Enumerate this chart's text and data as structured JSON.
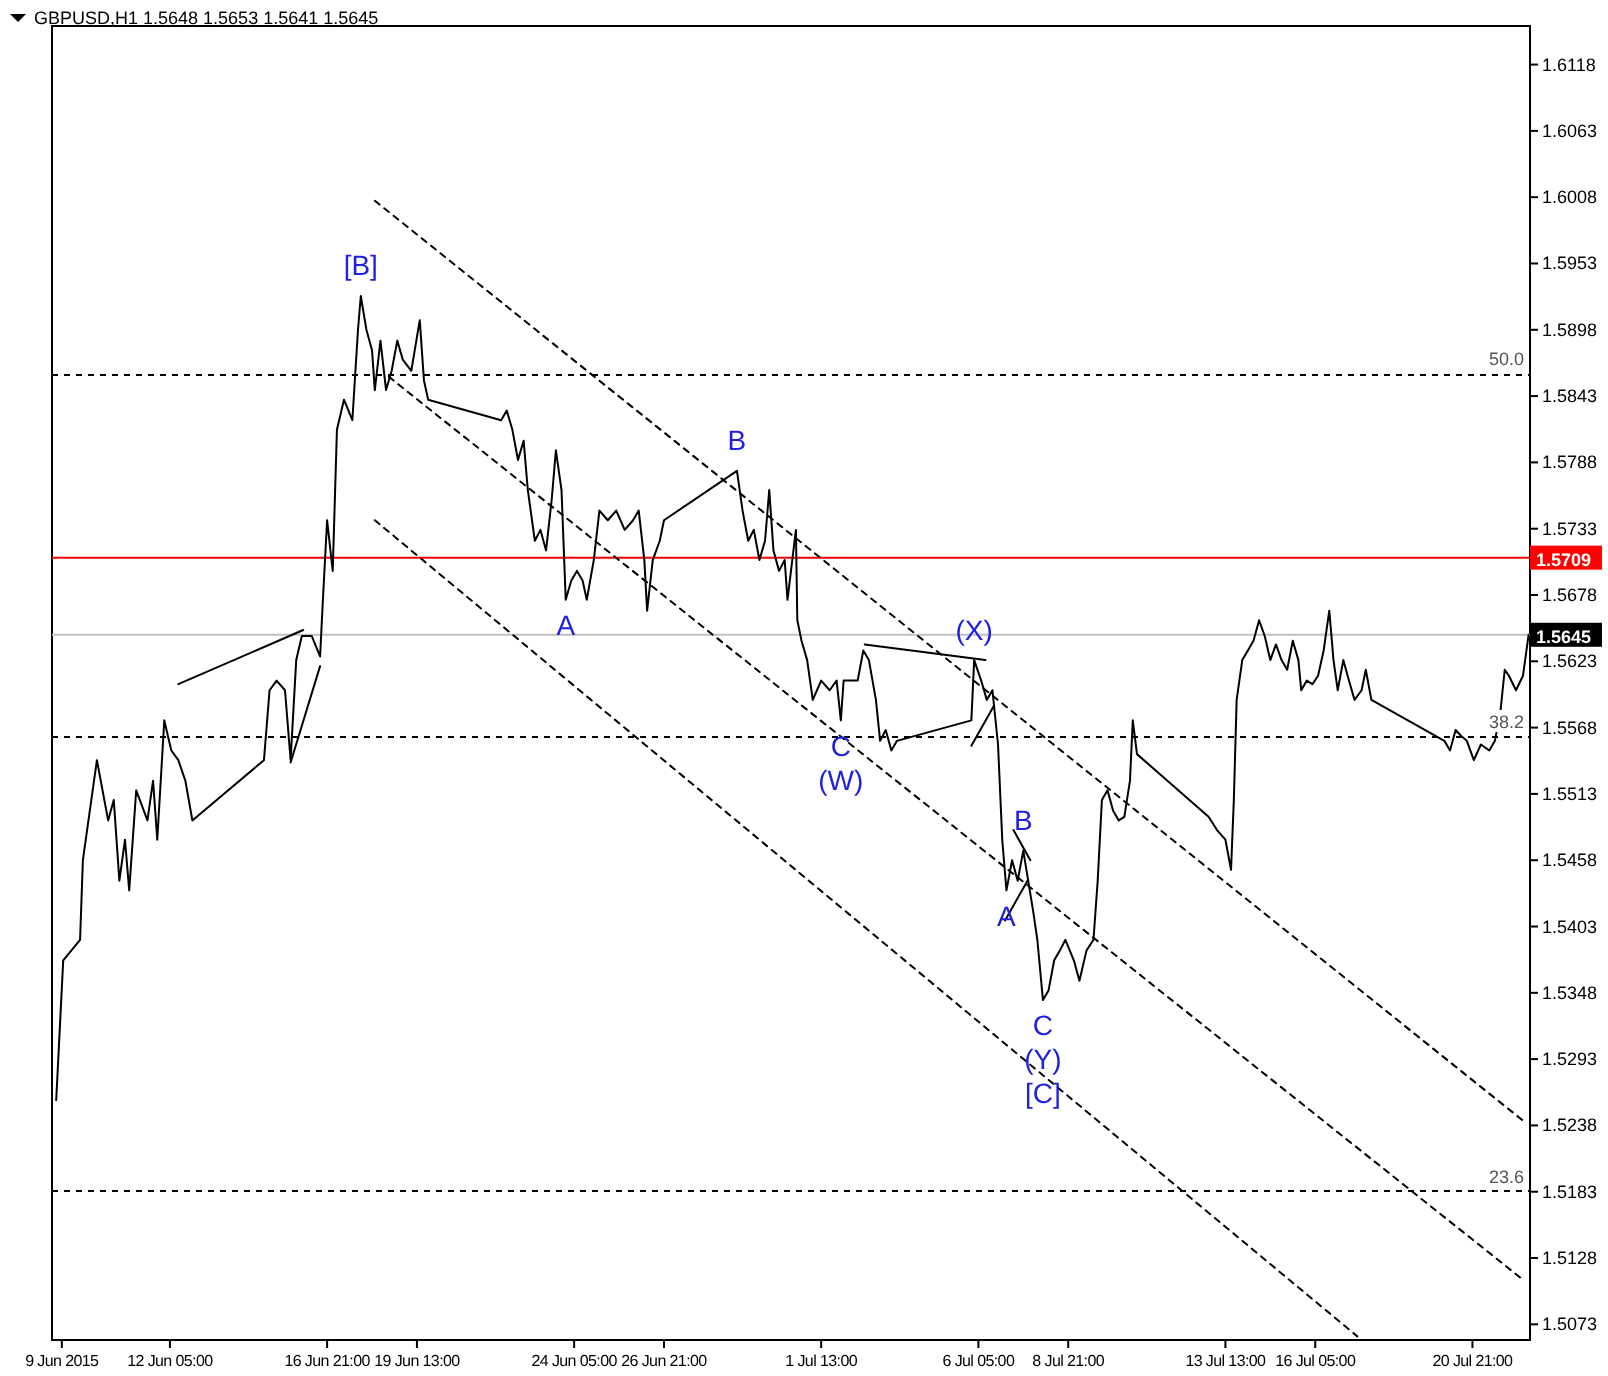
{
  "chart_data": {
    "type": "line",
    "title": "GBPUSD,H1  1.5648 1.5653 1.5641 1.5645",
    "xlim": [
      "2015-06-08T17:00",
      "2015-07-22T14:00"
    ],
    "ylim": [
      1.506,
      1.615
    ],
    "xticks": [
      {
        "value": "2015-06-09T00:00",
        "label": "9 Jun 2015"
      },
      {
        "value": "2015-06-12T05:00",
        "label": "12 Jun 05:00"
      },
      {
        "value": "2015-06-16T21:00",
        "label": "16 Jun 21:00"
      },
      {
        "value": "2015-06-19T13:00",
        "label": "19 Jun 13:00"
      },
      {
        "value": "2015-06-24T05:00",
        "label": "24 Jun 05:00"
      },
      {
        "value": "2015-06-26T21:00",
        "label": "26 Jun 21:00"
      },
      {
        "value": "2015-07-01T13:00",
        "label": "1 Jul 13:00"
      },
      {
        "value": "2015-07-06T05:00",
        "label": "6 Jul 05:00"
      },
      {
        "value": "2015-07-08T21:00",
        "label": "8 Jul 21:00"
      },
      {
        "value": "2015-07-13T13:00",
        "label": "13 Jul 13:00"
      },
      {
        "value": "2015-07-16T05:00",
        "label": "16 Jul 05:00"
      },
      {
        "value": "2015-07-20T21:00",
        "label": "20 Jul 21:00"
      }
    ],
    "yticks": [
      1.5073,
      1.5128,
      1.5183,
      1.5238,
      1.5293,
      1.5348,
      1.5403,
      1.5458,
      1.5513,
      1.5568,
      1.5623,
      1.5678,
      1.5733,
      1.5788,
      1.5843,
      1.5898,
      1.5953,
      1.6008,
      1.6063,
      1.6118
    ],
    "grid": false,
    "series": [
      {
        "color": "#000000",
        "line_style": "solid",
        "x": [
          "2015-06-08T20:00",
          "2015-06-09T01:00",
          "2015-06-09T13:00",
          "2015-06-09T15:00",
          "2015-06-10T01:00",
          "2015-06-10T09:00",
          "2015-06-10T13:00",
          "2015-06-10T17:00",
          "2015-06-10T21:00",
          "2015-06-11T00:00",
          "2015-06-11T05:00",
          "2015-06-11T13:00",
          "2015-06-11T17:00",
          "2015-06-11T20:00",
          "2015-06-12T01:00",
          "2015-06-12T06:00",
          "2015-06-12T11:00",
          "2015-06-12T16:00",
          "2015-06-12T21:00",
          "2015-06-15T00:00",
          "2015-06-15T04:00",
          "2015-06-15T09:00",
          "2015-06-15T15:00",
          "2015-06-15T19:00",
          "2015-06-15T23:00",
          "2015-06-16T03:00",
          "2015-06-16T10:00",
          "2015-06-16T16:00",
          "2015-06-16T18:00",
          "2015-06-16T21:00",
          "2015-06-17T01:00",
          "2015-06-17T04:00",
          "2015-06-17T09:00",
          "2015-06-17T15:00",
          "2015-06-17T19:00",
          "2015-06-17T21:00",
          "2015-06-18T01:00",
          "2015-06-18T05:00",
          "2015-06-18T07:00",
          "2015-06-18T11:00",
          "2015-06-18T15:00",
          "2015-06-18T19:00",
          "2015-06-18T23:00",
          "2015-06-19T03:00",
          "2015-06-19T09:00",
          "2015-06-19T15:00",
          "2015-06-19T18:00",
          "2015-06-19T21:00",
          "2015-06-22T01:00",
          "2015-06-22T05:00",
          "2015-06-22T09:00",
          "2015-06-22T13:00",
          "2015-06-22T17:00",
          "2015-06-22T20:00",
          "2015-06-23T01:00",
          "2015-06-23T05:00",
          "2015-06-23T09:00",
          "2015-06-23T13:00",
          "2015-06-23T16:00",
          "2015-06-23T20:00",
          "2015-06-23T23:00",
          "2015-06-24T03:00",
          "2015-06-24T07:00",
          "2015-06-24T11:00",
          "2015-06-24T14:00",
          "2015-06-24T19:00",
          "2015-06-24T23:00",
          "2015-06-25T05:00",
          "2015-06-25T11:00",
          "2015-06-25T17:00",
          "2015-06-25T23:00",
          "2015-06-26T03:00",
          "2015-06-26T07:00",
          "2015-06-26T09:00",
          "2015-06-26T13:00",
          "2015-06-26T18:00",
          "2015-06-26T21:00",
          "2015-06-29T01:00",
          "2015-06-29T05:00",
          "2015-06-29T09:00",
          "2015-06-29T13:00",
          "2015-06-29T17:00",
          "2015-06-29T21:00",
          "2015-06-30T00:00",
          "2015-06-30T03:00",
          "2015-06-30T07:00",
          "2015-06-30T11:00",
          "2015-06-30T13:00",
          "2015-06-30T19:00",
          "2015-06-30T20:00",
          "2015-06-30T23:00",
          "2015-07-01T03:00",
          "2015-07-01T07:00",
          "2015-07-01T13:00",
          "2015-07-01T19:00",
          "2015-07-02T00:00",
          "2015-07-02T03:00",
          "2015-07-02T05:00",
          "2015-07-02T15:00",
          "2015-07-02T19:00",
          "2015-07-02T23:00",
          "2015-07-03T04:00",
          "2015-07-03T07:00",
          "2015-07-03T11:00",
          "2015-07-03T15:00",
          "2015-07-03T19:00",
          "2015-07-06T00:00",
          "2015-07-06T02:00",
          "2015-07-06T07:00",
          "2015-07-06T11:00",
          "2015-07-06T15:00",
          "2015-07-06T19:00",
          "2015-07-06T22:00",
          "2015-07-07T01:00",
          "2015-07-07T05:00",
          "2015-07-07T09:00",
          "2015-07-07T13:00",
          "2015-07-07T20:00",
          "2015-07-07T23:00",
          "2015-07-08T03:00",
          "2015-07-08T07:00",
          "2015-07-08T11:00",
          "2015-07-08T15:00",
          "2015-07-08T19:00",
          "2015-07-09T01:00",
          "2015-07-09T05:00",
          "2015-07-09T10:00",
          "2015-07-09T15:00",
          "2015-07-09T18:00",
          "2015-07-09T21:00",
          "2015-07-10T01:00",
          "2015-07-10T05:00",
          "2015-07-10T09:00",
          "2015-07-10T13:00",
          "2015-07-10T17:00",
          "2015-07-10T19:00",
          "2015-07-10T22:00",
          "2015-07-13T01:00",
          "2015-07-13T07:00",
          "2015-07-13T13:00",
          "2015-07-13T17:00",
          "2015-07-13T19:00",
          "2015-07-13T21:00",
          "2015-07-14T01:00",
          "2015-07-14T05:00",
          "2015-07-14T09:00",
          "2015-07-14T13:00",
          "2015-07-14T17:00",
          "2015-07-14T21:00",
          "2015-07-15T01:00",
          "2015-07-15T05:00",
          "2015-07-15T09:00",
          "2015-07-15T13:00",
          "2015-07-15T17:00",
          "2015-07-15T19:00",
          "2015-07-15T23:00",
          "2015-07-16T03:00",
          "2015-07-16T07:00",
          "2015-07-16T11:00",
          "2015-07-16T15:00",
          "2015-07-16T18:00",
          "2015-07-16T21:00",
          "2015-07-17T01:00",
          "2015-07-17T05:00",
          "2015-07-17T09:00",
          "2015-07-17T14:00",
          "2015-07-17T17:00",
          "2015-07-17T21:00",
          "2015-07-20T01:00",
          "2015-07-20T05:00",
          "2015-07-20T09:00",
          "2015-07-20T13:00",
          "2015-07-20T17:00",
          "2015-07-20T22:00",
          "2015-07-21T03:00",
          "2015-07-21T09:00",
          "2015-07-21T13:00",
          "2015-07-21T17:00",
          "2015-07-21T20:00",
          "2015-07-21T23:00",
          "2015-07-22T04:00",
          "2015-07-22T09:00",
          "2015-07-22T13:00"
        ],
        "values": [
          1.5259,
          1.5375,
          1.5392,
          1.5458,
          1.5541,
          1.5491,
          1.5508,
          1.5441,
          1.5475,
          1.5433,
          1.5516,
          1.5491,
          1.5524,
          1.5475,
          1.5574,
          1.5549,
          1.5541,
          1.5524,
          1.5491,
          1.5541,
          1.5599,
          1.5607,
          1.5599,
          1.5541,
          1.5624,
          1.5644,
          1.5644,
          1.5627,
          1.5674,
          1.574,
          1.5698,
          1.5815,
          1.584,
          1.5823,
          1.5898,
          1.5926,
          1.5898,
          1.5881,
          1.5848,
          1.5889,
          1.5848,
          1.5864,
          1.5889,
          1.5873,
          1.5864,
          1.5906,
          1.5856,
          1.584,
          1.5823,
          1.5831,
          1.5815,
          1.579,
          1.5806,
          1.5765,
          1.5723,
          1.5732,
          1.5715,
          1.5757,
          1.5798,
          1.5765,
          1.5674,
          1.569,
          1.5698,
          1.569,
          1.5674,
          1.5707,
          1.5748,
          1.574,
          1.5748,
          1.5732,
          1.574,
          1.5748,
          1.5707,
          1.5665,
          1.5707,
          1.5723,
          1.574,
          1.5781,
          1.5748,
          1.5723,
          1.5732,
          1.5707,
          1.5723,
          1.5765,
          1.5715,
          1.5698,
          1.5707,
          1.5674,
          1.5732,
          1.5657,
          1.564,
          1.5624,
          1.5591,
          1.5607,
          1.5599,
          1.5607,
          1.5574,
          1.5607,
          1.5607,
          1.5632,
          1.5624,
          1.5591,
          1.5557,
          1.5566,
          1.5549,
          1.5557,
          1.5574,
          1.5624,
          1.5607,
          1.5591,
          1.5599,
          1.5554,
          1.5475,
          1.5433,
          1.5458,
          1.5441,
          1.5466,
          1.5416,
          1.5392,
          1.5342,
          1.535,
          1.5375,
          1.5383,
          1.5392,
          1.5375,
          1.5358,
          1.5383,
          1.5392,
          1.5441,
          1.5508,
          1.5516,
          1.5499,
          1.5491,
          1.5494,
          1.5524,
          1.5574,
          1.5546,
          1.5494,
          1.5483,
          1.5475,
          1.545,
          1.5508,
          1.5591,
          1.5624,
          1.5632,
          1.564,
          1.5657,
          1.5644,
          1.5624,
          1.5637,
          1.5624,
          1.5616,
          1.564,
          1.5624,
          1.5599,
          1.5607,
          1.5604,
          1.5611,
          1.5632,
          1.5665,
          1.5624,
          1.5599,
          1.5624,
          1.5607,
          1.5591,
          1.5599,
          1.5616,
          1.5591,
          1.5557,
          1.5549,
          1.5566,
          1.5561,
          1.5557,
          1.5541,
          1.5554,
          1.5549,
          1.5557,
          1.5582,
          1.5616,
          1.5611,
          1.5599,
          1.5611,
          1.5645
        ]
      },
      {
        "color": "#000000",
        "line_style": "dashed",
        "x": [
          "2015-06-18T07:00",
          "2015-07-22T09:00"
        ],
        "values": [
          1.6005,
          1.5242
        ]
      },
      {
        "color": "#000000",
        "line_style": "dashed",
        "x": [
          "2015-06-18T17:00",
          "2015-07-22T09:00"
        ],
        "values": [
          1.5859,
          1.511
        ]
      },
      {
        "color": "#000000",
        "line_style": "dashed",
        "x": [
          "2015-06-18T07:00",
          "2015-07-17T11:00"
        ],
        "values": [
          1.574,
          1.5063
        ]
      },
      {
        "color": "#000000",
        "line_style": "solid",
        "x": [
          "2015-06-12T11:00",
          "2015-06-16T04:00"
        ],
        "values": [
          1.5604,
          1.5649
        ]
      },
      {
        "color": "#000000",
        "line_style": "solid",
        "x": [
          "2015-06-15T19:00",
          "2015-06-16T16:00"
        ],
        "values": [
          1.5539,
          1.5619
        ]
      },
      {
        "color": "#000000",
        "line_style": "solid",
        "x": [
          "2015-07-02T20:00",
          "2015-07-06T10:00"
        ],
        "values": [
          1.5637,
          1.5624
        ]
      },
      {
        "color": "#000000",
        "line_style": "solid",
        "x": [
          "2015-07-06T00:00",
          "2015-07-06T16:00"
        ],
        "values": [
          1.5553,
          1.5586
        ]
      },
      {
        "color": "#000000",
        "line_style": "solid",
        "x": [
          "2015-07-07T06:00",
          "2015-07-07T18:00"
        ],
        "values": [
          1.5483,
          1.5458
        ]
      },
      {
        "color": "#000000",
        "line_style": "solid",
        "x": [
          "2015-07-07T00:00",
          "2015-07-07T16:00"
        ],
        "values": [
          1.5408,
          1.5441
        ]
      }
    ],
    "ref_lines": [
      {
        "axis": "y",
        "value": 1.5709,
        "label": "1.5709",
        "color": "#ff0000",
        "line_style": "solid"
      },
      {
        "axis": "y",
        "value": 1.5645,
        "label": "1.5645",
        "color": "#c0c0c0",
        "line_style": "solid"
      },
      {
        "axis": "y",
        "value": 1.5862,
        "color": "#000000",
        "line_style": "dashed"
      },
      {
        "axis": "y",
        "value": 1.5561,
        "color": "#000000",
        "line_style": "dashed"
      },
      {
        "axis": "y",
        "value": 1.5184,
        "color": "#000000",
        "line_style": "dashed"
      }
    ],
    "annotations": [
      {
        "text": "50.0",
        "y": 1.5862
      },
      {
        "text": "38.2",
        "y": 1.5561
      },
      {
        "text": "23.6",
        "y": 1.5184
      },
      {
        "text": "[B]",
        "x": "2015-06-17T21:00",
        "y": 1.5926
      },
      {
        "text": "A",
        "x": "2015-06-23T23:00",
        "y": 1.5674
      },
      {
        "text": "B",
        "x": "2015-06-29T01:00",
        "y": 1.5781
      },
      {
        "text": "C",
        "x": "2015-07-02T03:00",
        "y": 1.5574
      },
      {
        "text": "(W)",
        "x": "2015-07-02T03:00",
        "y": 1.5574
      },
      {
        "text": "(X)",
        "x": "2015-07-06T02:00",
        "y": 1.5624
      },
      {
        "text": "A",
        "x": "2015-07-07T01:00",
        "y": 1.5433
      },
      {
        "text": "B",
        "x": "2015-07-07T13:00",
        "y": 1.5466
      },
      {
        "text": "C",
        "x": "2015-07-08T03:00",
        "y": 1.5342
      },
      {
        "text": "(Y)",
        "x": "2015-07-08T03:00",
        "y": 1.5342
      },
      {
        "text": "[C]",
        "x": "2015-07-08T03:00",
        "y": 1.5342
      }
    ]
  }
}
